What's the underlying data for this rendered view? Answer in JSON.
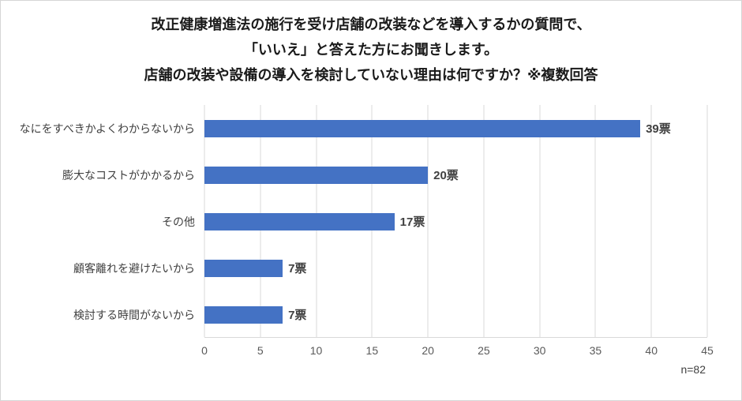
{
  "title": {
    "lines": [
      "改正健康増進法の施行を受け店舗の改装などを導入するかの質問で、",
      "「いいえ」と答えた方にお聞きします。",
      "店舗の改装や設備の導入を検討していない理由は何ですか？※複数回答"
    ]
  },
  "chart_data": {
    "type": "bar",
    "orientation": "horizontal",
    "categories": [
      "なにをすべきかよくわからないから",
      "膨大なコストがかかるから",
      "その他",
      "顧客離れを避けたいから",
      "検討する時間がないから"
    ],
    "values": [
      39,
      20,
      17,
      7,
      7
    ],
    "value_labels": [
      "39票",
      "20票",
      "17票",
      "7票",
      "7票"
    ],
    "xlim": [
      0,
      45
    ],
    "xticks": [
      0,
      5,
      10,
      15,
      20,
      25,
      30,
      35,
      40,
      45
    ],
    "grid": true,
    "legend": "none",
    "bar_color": "#4472C4",
    "note": "n=82"
  },
  "colors": {
    "bar": "#4472C4",
    "gridline": "#d9d9d9",
    "tick_text": "#595959",
    "label_text": "#404040",
    "title_text": "#1a1a1a",
    "frame_border": "#d6d6d6"
  }
}
